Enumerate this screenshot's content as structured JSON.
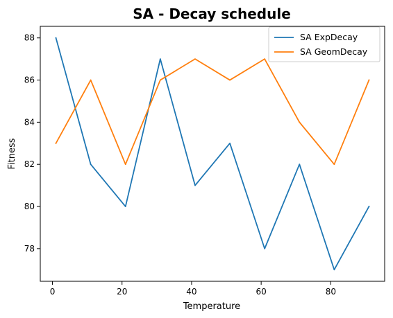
{
  "chart_data": {
    "type": "line",
    "title": "SA - Decay schedule",
    "xlabel": "Temperature",
    "ylabel": "Fitness",
    "xlim": [
      -3.5,
      95.5
    ],
    "ylim": [
      76.45,
      88.55
    ],
    "xticks": [
      0,
      20,
      40,
      60,
      80
    ],
    "yticks": [
      78,
      80,
      82,
      84,
      86,
      88
    ],
    "xtick_labels": [
      "0",
      "20",
      "40",
      "60",
      "80"
    ],
    "ytick_labels": [
      "78",
      "80",
      "82",
      "84",
      "86",
      "88"
    ],
    "grid": false,
    "legend_position": "top-right",
    "x": [
      1,
      11,
      21,
      31,
      41,
      51,
      61,
      71,
      81,
      91
    ],
    "series": [
      {
        "name": "SA ExpDecay",
        "color": "#1f77b4",
        "values": [
          88,
          82,
          80,
          87,
          81,
          83,
          78,
          82,
          77,
          80
        ]
      },
      {
        "name": "SA GeomDecay",
        "color": "#ff7f0e",
        "values": [
          83,
          86,
          82,
          86,
          87,
          86,
          87,
          84,
          82,
          86
        ]
      }
    ]
  }
}
